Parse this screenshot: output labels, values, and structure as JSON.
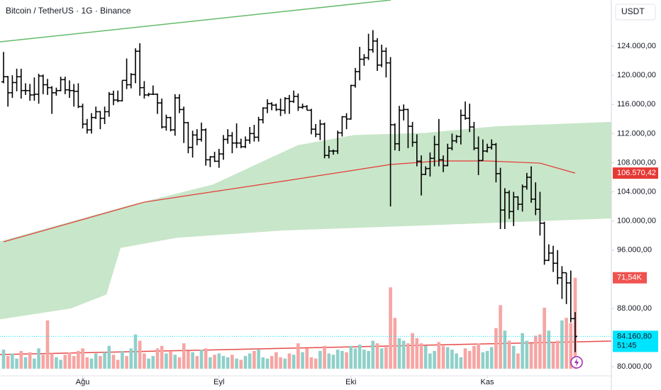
{
  "chart_data": {
    "type": "ohlc",
    "title": "Bitcoin / TetherUS · 1G · Binance",
    "currency": "USDT",
    "bar_color": "#000000",
    "ylim": [
      78750,
      130330
    ],
    "yticks": [
      {
        "value": 80000,
        "label": "80.000,00"
      },
      {
        "value": 88000,
        "label": "88.000,00"
      },
      {
        "value": 96000,
        "label": "96.000,00"
      },
      {
        "value": 100000,
        "label": "100.000,00"
      },
      {
        "value": 104000,
        "label": "104.000,00"
      },
      {
        "value": 108000,
        "label": "108.000,00"
      },
      {
        "value": 112000,
        "label": "112.000,00"
      },
      {
        "value": 116000,
        "label": "116.000,00"
      },
      {
        "value": 120000,
        "label": "120.000,00"
      },
      {
        "value": 124000,
        "label": "124.000,00"
      }
    ],
    "xticks": [
      {
        "value": 18,
        "label": "Ağu"
      },
      {
        "value": 49,
        "label": "Eyl"
      },
      {
        "value": 79,
        "label": "Eki"
      },
      {
        "value": 110,
        "label": "Kas"
      }
    ],
    "grid": false,
    "ohlc": [
      [
        119100,
        123200,
        118900,
        119800
      ],
      [
        119800,
        119900,
        115700,
        117600
      ],
      [
        117600,
        120000,
        116900,
        119000
      ],
      [
        119000,
        120900,
        117800,
        119800
      ],
      [
        119800,
        120900,
        116800,
        117900
      ],
      [
        117900,
        118900,
        117300,
        117900
      ],
      [
        117900,
        118800,
        116500,
        117300
      ],
      [
        117300,
        119700,
        116500,
        117400
      ],
      [
        117400,
        120200,
        116100,
        119900
      ],
      [
        119900,
        120100,
        117400,
        118700
      ],
      [
        118700,
        119500,
        117300,
        118300
      ],
      [
        118300,
        118500,
        114700,
        117600
      ],
      [
        117600,
        118300,
        117200,
        117900
      ],
      [
        117900,
        119800,
        117800,
        119400
      ],
      [
        119400,
        119800,
        117400,
        118000
      ],
      [
        118000,
        119300,
        116900,
        117900
      ],
      [
        117900,
        118800,
        115700,
        117800
      ],
      [
        117800,
        118900,
        115500,
        115700
      ],
      [
        115700,
        116100,
        112700,
        113300
      ],
      [
        113300,
        114000,
        112000,
        112500
      ],
      [
        112500,
        114800,
        112000,
        114200
      ],
      [
        114200,
        115700,
        114000,
        115000
      ],
      [
        115000,
        115100,
        112600,
        114100
      ],
      [
        114100,
        115700,
        113300,
        115000
      ],
      [
        115000,
        117700,
        114300,
        117400
      ],
      [
        117400,
        117900,
        115900,
        116600
      ],
      [
        116600,
        117900,
        116300,
        116500
      ],
      [
        116500,
        119300,
        116400,
        119300
      ],
      [
        119300,
        122300,
        118100,
        118700
      ],
      [
        118700,
        120300,
        118200,
        120100
      ],
      [
        120100,
        123700,
        118900,
        123300
      ],
      [
        123300,
        124400,
        117200,
        118300
      ],
      [
        118300,
        119200,
        116800,
        117300
      ],
      [
        117300,
        117600,
        117100,
        117400
      ],
      [
        117400,
        118600,
        117300,
        117400
      ],
      [
        117400,
        117500,
        114700,
        116200
      ],
      [
        116200,
        116800,
        112700,
        112900
      ],
      [
        112900,
        114600,
        112400,
        114200
      ],
      [
        114200,
        114300,
        112300,
        112500
      ],
      [
        112500,
        117400,
        111700,
        116900
      ],
      [
        116900,
        117400,
        114800,
        115300
      ],
      [
        115300,
        115700,
        110700,
        113500
      ],
      [
        113500,
        113600,
        109300,
        110100
      ],
      [
        110100,
        112400,
        108700,
        111800
      ],
      [
        111800,
        112600,
        110400,
        111200
      ],
      [
        111200,
        113500,
        110900,
        112500
      ],
      [
        112500,
        112700,
        107600,
        108400
      ],
      [
        108400,
        108900,
        107400,
        108800
      ],
      [
        108800,
        109500,
        108100,
        108200
      ],
      [
        108200,
        109900,
        107300,
        109200
      ],
      [
        109200,
        111800,
        108400,
        111200
      ],
      [
        111200,
        112600,
        110600,
        111700
      ],
      [
        111700,
        112200,
        109300,
        110700
      ],
      [
        110700,
        113400,
        110000,
        110700
      ],
      [
        110700,
        111300,
        110000,
        110200
      ],
      [
        110200,
        111600,
        110000,
        111100
      ],
      [
        111100,
        112900,
        110600,
        112000
      ],
      [
        112000,
        113200,
        110900,
        111500
      ],
      [
        111500,
        114300,
        110900,
        113900
      ],
      [
        113900,
        115600,
        113400,
        115500
      ],
      [
        115500,
        116700,
        114800,
        116100
      ],
      [
        116100,
        116300,
        115200,
        115900
      ],
      [
        115900,
        116100,
        115100,
        115300
      ],
      [
        115300,
        116800,
        114400,
        115200
      ],
      [
        115200,
        117000,
        114700,
        116800
      ],
      [
        116800,
        117300,
        114700,
        116400
      ],
      [
        116400,
        117900,
        116200,
        117100
      ],
      [
        117100,
        117500,
        115100,
        115600
      ],
      [
        115600,
        116100,
        115400,
        115700
      ],
      [
        115700,
        115900,
        115200,
        115200
      ],
      [
        115200,
        115400,
        111900,
        112600
      ],
      [
        112600,
        113300,
        111500,
        111900
      ],
      [
        111900,
        113900,
        111100,
        113300
      ],
      [
        113300,
        113500,
        108600,
        109000
      ],
      [
        109000,
        110300,
        108600,
        109600
      ],
      [
        109600,
        109800,
        109100,
        109600
      ],
      [
        109600,
        112400,
        109200,
        112100
      ],
      [
        112100,
        114400,
        111600,
        114300
      ],
      [
        114300,
        114800,
        112600,
        114000
      ],
      [
        114000,
        118700,
        113900,
        118600
      ],
      [
        118600,
        121000,
        118300,
        120500
      ],
      [
        120500,
        123900,
        119300,
        122200
      ],
      [
        122200,
        122900,
        121300,
        122400
      ],
      [
        122400,
        125700,
        122100,
        123500
      ],
      [
        123500,
        126200,
        123100,
        124700
      ],
      [
        124700,
        125100,
        120600,
        121400
      ],
      [
        121400,
        124200,
        121100,
        123300
      ],
      [
        123300,
        123800,
        119700,
        121700
      ],
      [
        121700,
        122500,
        102000,
        113200
      ],
      [
        113200,
        113400,
        109700,
        110600
      ],
      [
        110600,
        115800,
        109600,
        115200
      ],
      [
        115200,
        116000,
        113800,
        115300
      ],
      [
        115300,
        115400,
        110000,
        113000
      ],
      [
        113000,
        113600,
        110200,
        110800
      ],
      [
        110800,
        111900,
        107500,
        108200
      ],
      [
        108200,
        109000,
        103500,
        106400
      ],
      [
        106400,
        107500,
        106300,
        107200
      ],
      [
        107200,
        109400,
        106100,
        108600
      ],
      [
        108600,
        111700,
        107500,
        110500
      ],
      [
        110500,
        114000,
        107500,
        108400
      ],
      [
        108400,
        109000,
        106700,
        107600
      ],
      [
        107600,
        110600,
        107500,
        110000
      ],
      [
        110000,
        112000,
        109700,
        111000
      ],
      [
        111000,
        111800,
        110700,
        111600
      ],
      [
        111600,
        115300,
        110500,
        114500
      ],
      [
        114500,
        116400,
        113900,
        114100
      ],
      [
        114100,
        116100,
        112200,
        112900
      ],
      [
        112900,
        113600,
        109700,
        110000
      ],
      [
        110000,
        111600,
        106300,
        108300
      ],
      [
        108300,
        111200,
        108300,
        109600
      ],
      [
        109600,
        110600,
        109400,
        110100
      ],
      [
        110100,
        111200,
        109800,
        110500
      ],
      [
        110500,
        110700,
        105300,
        106500
      ],
      [
        106500,
        107300,
        98900,
        101500
      ],
      [
        101500,
        104500,
        98900,
        103900
      ],
      [
        103900,
        104200,
        100300,
        101300
      ],
      [
        101300,
        104000,
        99300,
        103300
      ],
      [
        103300,
        103400,
        101500,
        102300
      ],
      [
        102300,
        105000,
        101300,
        104700
      ],
      [
        104700,
        106600,
        104300,
        106000
      ],
      [
        106000,
        107500,
        102500,
        103000
      ],
      [
        103000,
        105300,
        100800,
        101600
      ],
      [
        101600,
        104000,
        98000,
        99700
      ],
      [
        99700,
        99900,
        94000,
        94600
      ],
      [
        94600,
        96800,
        94500,
        95600
      ],
      [
        95600,
        96600,
        93000,
        94200
      ],
      [
        94200,
        96000,
        91300,
        92200
      ],
      [
        92200,
        93800,
        89300,
        92900
      ],
      [
        92900,
        92900,
        88600,
        91500
      ],
      [
        91500,
        93200,
        86100,
        86600
      ],
      [
        86600,
        87500,
        82000,
        84160.8
      ]
    ],
    "last_price": {
      "value": 84160.8,
      "label": "84.160,80",
      "countdown": "51:45",
      "color": "#00e5ff"
    },
    "volume": {
      "lim": [
        0,
        290
      ],
      "up_color": "#8fd0c9",
      "down_color": "#f6a5a3",
      "last_label": "71,54K",
      "label_color": "#ef5350",
      "values": [
        15,
        10,
        12,
        8,
        14,
        9,
        13,
        8,
        16,
        11,
        38,
        12,
        9,
        7,
        11,
        13,
        10,
        14,
        16,
        9,
        8,
        12,
        10,
        13,
        18,
        11,
        7,
        14,
        10,
        16,
        27,
        22,
        12,
        8,
        10,
        16,
        18,
        12,
        14,
        11,
        9,
        20,
        14,
        13,
        10,
        15,
        16,
        9,
        11,
        12,
        10,
        9,
        11,
        8,
        7,
        10,
        12,
        14,
        15,
        9,
        8,
        10,
        13,
        9,
        8,
        12,
        11,
        20,
        13,
        16,
        9,
        8,
        14,
        18,
        12,
        11,
        15,
        14,
        13,
        18,
        16,
        19,
        15,
        14,
        22,
        20,
        16,
        17,
        64,
        40,
        24,
        22,
        20,
        28,
        24,
        20,
        18,
        12,
        14,
        21,
        18,
        17,
        15,
        12,
        9,
        16,
        14,
        18,
        20,
        13,
        14,
        17,
        32,
        50,
        30,
        22,
        18,
        12,
        28,
        22,
        20,
        26,
        27,
        48,
        30,
        20,
        22,
        38,
        40,
        36,
        71.54
      ]
    },
    "ma": {
      "color": "#e53935",
      "x": [
        0,
        32,
        64,
        88,
        99,
        110,
        122,
        130
      ],
      "values": [
        97140,
        102590,
        105500,
        107750,
        108240,
        108240,
        107940,
        106570.42
      ],
      "last_label": "106.570,42"
    },
    "band": {
      "color": "#c8e6c9",
      "upper_x": [
        -0.8,
        28.2,
        47.6,
        66.9,
        79.8,
        96,
        112,
        138.2
      ],
      "upper": [
        97200,
        102100,
        105000,
        110400,
        111800,
        112100,
        113000,
        113600
      ],
      "lower_x": [
        -0.8,
        15.3,
        23.4,
        26.6,
        39.5,
        63.7,
        96,
        138.2
      ],
      "lower": [
        86500,
        88000,
        89900,
        96300,
        97700,
        98700,
        99400,
        100350
      ]
    },
    "trendlines": [
      {
        "color": "#66bb6a",
        "x": [
          -0.8,
          88.1
        ],
        "values": [
          124584,
          130326
        ]
      },
      {
        "color": "#e84a4a",
        "x": [
          -0.8,
          138.2
        ],
        "values": [
          81664,
          83513
        ]
      }
    ]
  }
}
